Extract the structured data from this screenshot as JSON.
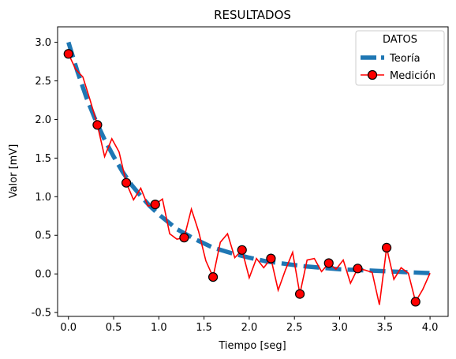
{
  "chart_data": {
    "type": "line",
    "title": "RESULTADOS",
    "xlabel": "Tiempo [seg]",
    "ylabel": "Valor [mV]",
    "xlim": [
      -0.12,
      4.2
    ],
    "ylim": [
      -0.55,
      3.2
    ],
    "xticks": [
      0.0,
      0.5,
      1.0,
      1.5,
      2.0,
      2.5,
      3.0,
      3.5,
      4.0
    ],
    "xtick_labels": [
      "0.0",
      "0.5",
      "1.0",
      "1.5",
      "2.0",
      "2.5",
      "3.0",
      "3.5",
      "4.0"
    ],
    "yticks": [
      -0.5,
      0.0,
      0.5,
      1.0,
      1.5,
      2.0,
      2.5,
      3.0
    ],
    "ytick_labels": [
      "-0.5",
      "0.0",
      "0.5",
      "1.0",
      "1.5",
      "2.0",
      "2.5",
      "3.0"
    ],
    "grid": false,
    "legend": {
      "title": "DATOS",
      "placement": "top-right"
    },
    "series": [
      {
        "name": "Teoría",
        "style": "dashed",
        "color": "#1f77b4",
        "x": [
          0.0,
          0.1,
          0.2,
          0.3,
          0.4,
          0.5,
          0.6,
          0.7,
          0.8,
          0.9,
          1.0,
          1.2,
          1.4,
          1.6,
          1.8,
          2.0,
          2.2,
          2.4,
          2.6,
          2.8,
          3.0,
          3.2,
          3.4,
          3.6,
          3.8,
          4.0
        ],
        "y": [
          3.0,
          2.62,
          2.28,
          1.99,
          1.74,
          1.52,
          1.32,
          1.15,
          1.01,
          0.88,
          0.77,
          0.58,
          0.45,
          0.34,
          0.27,
          0.21,
          0.16,
          0.13,
          0.1,
          0.08,
          0.06,
          0.05,
          0.04,
          0.03,
          0.02,
          0.01
        ]
      },
      {
        "name": "Medición",
        "color": "#ff0000",
        "marker": "circle",
        "x": [
          0.0,
          0.08,
          0.16,
          0.24,
          0.32,
          0.4,
          0.48,
          0.56,
          0.64,
          0.72,
          0.8,
          0.88,
          0.96,
          1.04,
          1.12,
          1.2,
          1.28,
          1.36,
          1.44,
          1.52,
          1.6,
          1.68,
          1.76,
          1.84,
          1.92,
          2.0,
          2.08,
          2.16,
          2.24,
          2.32,
          2.4,
          2.48,
          2.56,
          2.64,
          2.72,
          2.8,
          2.88,
          2.96,
          3.04,
          3.12,
          3.2,
          3.28,
          3.36,
          3.44,
          3.52,
          3.6,
          3.68,
          3.76,
          3.84,
          3.92,
          4.0
        ],
        "y": [
          2.85,
          2.65,
          2.55,
          2.25,
          1.93,
          1.52,
          1.75,
          1.58,
          1.18,
          0.96,
          1.11,
          0.88,
          0.9,
          0.97,
          0.52,
          0.45,
          0.47,
          0.84,
          0.55,
          0.17,
          -0.04,
          0.41,
          0.52,
          0.21,
          0.31,
          -0.05,
          0.2,
          0.08,
          0.2,
          -0.21,
          0.05,
          0.28,
          -0.26,
          0.18,
          0.2,
          0.03,
          0.14,
          0.06,
          0.18,
          -0.12,
          0.07,
          0.05,
          0.02,
          -0.4,
          0.34,
          -0.07,
          0.08,
          0.01,
          -0.36,
          -0.2,
          0.01
        ],
        "marker_x": [
          0.0,
          0.32,
          0.64,
          0.96,
          1.28,
          1.6,
          1.92,
          2.24,
          2.56,
          2.88,
          3.2,
          3.52,
          3.84
        ],
        "marker_y": [
          2.85,
          1.93,
          1.18,
          0.9,
          0.47,
          -0.04,
          0.31,
          0.2,
          -0.26,
          0.14,
          0.07,
          0.34,
          -0.36
        ]
      }
    ]
  }
}
